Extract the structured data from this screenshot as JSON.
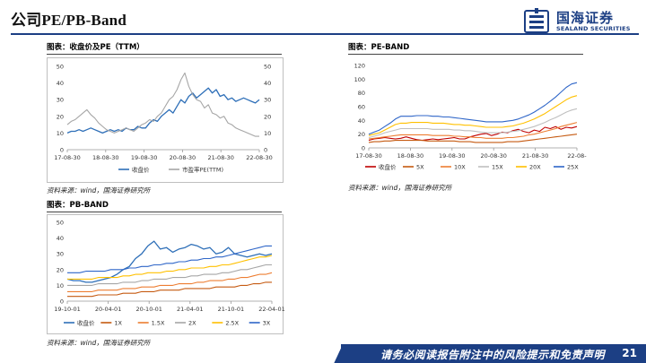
{
  "header": {
    "title": "公司PE/PB-Band",
    "logo_cn": "国海证券",
    "logo_en": "SEALAND SECURITIES"
  },
  "panels": [
    {
      "title": "图表：收盘价及PE（TTM）",
      "source": "资料来源：wind，国海证券研究所"
    },
    {
      "title": "图表：PE-BAND",
      "source": "资料来源：wind，国海证券研究所"
    },
    {
      "title": "图表：PB-BAND",
      "source": "资料来源：wind，国海证券研究所"
    }
  ],
  "footer": {
    "disclaimer": "请务必阅读报告附注中的风险提示和免责声明",
    "page": "21"
  },
  "colors": {
    "brand": "#1c3f84",
    "close": "#2e6fb8",
    "pe": "#a6a6a6",
    "b1": "#c55a11",
    "b2": "#ed7d31",
    "b3": "#f4b183",
    "b4": "#ffc000",
    "b5": "#2f66c8"
  },
  "chart_data": [
    {
      "type": "line",
      "x_ticks": [
        "17-08-30",
        "18-08-30",
        "19-08-30",
        "20-08-30",
        "21-08-30",
        "22-08-30"
      ],
      "ylim": [
        0,
        50
      ],
      "y_ticks": [
        "0",
        "10",
        "20",
        "30",
        "40",
        "50"
      ],
      "y2lim": [
        0,
        50
      ],
      "y2_ticks": [
        "0",
        "10",
        "20",
        "30",
        "40",
        "50"
      ],
      "series": [
        {
          "name": "收盘价",
          "axis": "left",
          "color": "#2e6fb8",
          "values": [
            10,
            11,
            11,
            12,
            11,
            12,
            13,
            12,
            11,
            10,
            11,
            12,
            11,
            12,
            11,
            13,
            12,
            12,
            14,
            13,
            13,
            16,
            18,
            17,
            20,
            22,
            24,
            22,
            26,
            30,
            28,
            32,
            34,
            31,
            33,
            35,
            37,
            34,
            36,
            32,
            33,
            30,
            31,
            29,
            30,
            31,
            30,
            29,
            28,
            30
          ]
        },
        {
          "name": "市盈率PE(TTM)",
          "axis": "right",
          "color": "#a6a6a6",
          "values": [
            15,
            17,
            18,
            20,
            22,
            24,
            21,
            19,
            16,
            14,
            12,
            11,
            10,
            11,
            12,
            13,
            12,
            11,
            13,
            15,
            16,
            18,
            17,
            20,
            22,
            26,
            30,
            32,
            36,
            42,
            46,
            38,
            33,
            30,
            29,
            25,
            27,
            22,
            21,
            19,
            20,
            16,
            15,
            13,
            12,
            11,
            10,
            9,
            8,
            8
          ]
        }
      ]
    },
    {
      "type": "line",
      "x_ticks": [
        "17-08-30",
        "18-08-30",
        "19-08-30",
        "20-08-30",
        "21-08-30",
        "22-08-"
      ],
      "ylim": [
        0,
        120
      ],
      "y_ticks": [
        "0",
        "20",
        "40",
        "60",
        "80",
        "100",
        "120"
      ],
      "series": [
        {
          "name": "收盘价",
          "color": "#c00000",
          "values": [
            11,
            13,
            14,
            15,
            14,
            13,
            14,
            16,
            14,
            12,
            11,
            12,
            13,
            12,
            13,
            14,
            15,
            13,
            13,
            16,
            18,
            20,
            21,
            18,
            20,
            23,
            22,
            25,
            27,
            24,
            22,
            26,
            24,
            30,
            28,
            31,
            27,
            30,
            29,
            31
          ]
        },
        {
          "name": "5X",
          "color": "#c55a11",
          "values": [
            8,
            9,
            9,
            10,
            10,
            11,
            11,
            11,
            11,
            11,
            11,
            10,
            10,
            10,
            10,
            10,
            10,
            9,
            9,
            9,
            8,
            8,
            8,
            8,
            8,
            8,
            9,
            9,
            9,
            10,
            11,
            12,
            13,
            14,
            15,
            16,
            17,
            18,
            19,
            20
          ]
        },
        {
          "name": "10X",
          "color": "#ed7d31",
          "values": [
            13,
            14,
            15,
            16,
            17,
            18,
            19,
            19,
            19,
            19,
            19,
            19,
            18,
            18,
            18,
            18,
            17,
            17,
            16,
            16,
            15,
            15,
            14,
            14,
            14,
            14,
            15,
            15,
            16,
            17,
            19,
            20,
            22,
            24,
            26,
            28,
            31,
            33,
            35,
            37
          ]
        },
        {
          "name": "15X",
          "color": "#bfbfbf",
          "values": [
            15,
            17,
            19,
            22,
            24,
            26,
            28,
            28,
            28,
            28,
            28,
            28,
            27,
            27,
            27,
            27,
            26,
            26,
            25,
            25,
            24,
            23,
            22,
            22,
            22,
            22,
            23,
            24,
            25,
            27,
            29,
            31,
            34,
            37,
            41,
            44,
            48,
            52,
            55,
            57
          ]
        },
        {
          "name": "20X",
          "color": "#ffc000",
          "values": [
            18,
            20,
            22,
            26,
            30,
            34,
            36,
            36,
            37,
            37,
            37,
            37,
            36,
            36,
            36,
            35,
            34,
            34,
            33,
            33,
            32,
            31,
            30,
            30,
            30,
            30,
            31,
            32,
            34,
            36,
            39,
            42,
            46,
            50,
            55,
            60,
            65,
            70,
            74,
            76
          ]
        },
        {
          "name": "25X",
          "color": "#2f66c8",
          "values": [
            20,
            23,
            26,
            31,
            36,
            42,
            46,
            46,
            46,
            47,
            47,
            47,
            46,
            46,
            45,
            45,
            44,
            43,
            42,
            41,
            40,
            39,
            38,
            38,
            38,
            38,
            39,
            40,
            42,
            45,
            48,
            52,
            57,
            62,
            68,
            74,
            81,
            88,
            93,
            95
          ]
        }
      ]
    },
    {
      "type": "line",
      "x_ticks": [
        "19-10-01",
        "20-04-01",
        "20-10-01",
        "21-04-01",
        "21-10-01",
        "22-04-01"
      ],
      "ylim": [
        0,
        50
      ],
      "y_ticks": [
        "0",
        "10",
        "20",
        "30",
        "40",
        "50"
      ],
      "series": [
        {
          "name": "收盘价",
          "color": "#2e6fb8",
          "values": [
            14,
            13,
            13,
            12,
            12,
            13,
            14,
            15,
            17,
            20,
            22,
            27,
            30,
            35,
            38,
            33,
            34,
            31,
            33,
            34,
            36,
            35,
            33,
            34,
            30,
            31,
            34,
            30,
            29,
            28,
            29,
            30,
            29,
            30
          ]
        },
        {
          "name": "1X",
          "color": "#c55a11",
          "values": [
            3,
            3,
            3,
            3,
            3,
            4,
            4,
            4,
            4,
            5,
            5,
            5,
            6,
            6,
            6,
            7,
            7,
            7,
            7,
            8,
            8,
            8,
            8,
            8,
            9,
            9,
            9,
            9,
            10,
            10,
            11,
            11,
            12,
            12
          ]
        },
        {
          "name": "1.5X",
          "color": "#ed7d31",
          "values": [
            6,
            6,
            6,
            6,
            6,
            7,
            7,
            7,
            7,
            8,
            8,
            8,
            9,
            9,
            9,
            10,
            10,
            10,
            11,
            11,
            11,
            12,
            12,
            13,
            13,
            13,
            14,
            14,
            15,
            15,
            16,
            17,
            17,
            18
          ]
        },
        {
          "name": "2X",
          "color": "#a6a6a6",
          "values": [
            10,
            10,
            10,
            10,
            10,
            11,
            11,
            11,
            11,
            12,
            12,
            12,
            13,
            13,
            14,
            14,
            14,
            15,
            15,
            15,
            16,
            16,
            17,
            17,
            17,
            18,
            18,
            19,
            20,
            20,
            21,
            22,
            23,
            23
          ]
        },
        {
          "name": "2.5X",
          "color": "#ffc000",
          "values": [
            14,
            14,
            14,
            14,
            14,
            15,
            15,
            15,
            15,
            16,
            16,
            17,
            17,
            18,
            18,
            18,
            19,
            19,
            20,
            20,
            21,
            21,
            21,
            22,
            22,
            23,
            23,
            24,
            25,
            26,
            27,
            28,
            28,
            29
          ]
        },
        {
          "name": "3X",
          "color": "#2f66c8",
          "values": [
            18,
            18,
            18,
            19,
            19,
            19,
            19,
            20,
            20,
            20,
            21,
            21,
            22,
            22,
            23,
            23,
            24,
            24,
            25,
            25,
            26,
            26,
            27,
            27,
            28,
            28,
            29,
            30,
            31,
            32,
            33,
            34,
            35,
            35
          ]
        }
      ]
    }
  ]
}
